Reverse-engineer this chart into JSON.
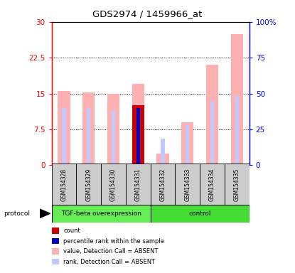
{
  "title": "GDS2974 / 1459966_at",
  "samples": [
    "GSM154328",
    "GSM154329",
    "GSM154330",
    "GSM154331",
    "GSM154332",
    "GSM154333",
    "GSM154334",
    "GSM154335"
  ],
  "ylim_left": [
    0,
    30
  ],
  "ylim_right": [
    0,
    100
  ],
  "yticks_left": [
    0,
    7.5,
    15,
    22.5,
    30
  ],
  "ytick_labels_left": [
    "0",
    "7.5",
    "15",
    "22.5",
    "30"
  ],
  "yticks_right": [
    0,
    25,
    50,
    75,
    100
  ],
  "ytick_labels_right": [
    "0",
    "25",
    "50",
    "75",
    "100%"
  ],
  "value_bars": [
    15.5,
    15.3,
    15.0,
    17.0,
    2.5,
    9.0,
    21.0,
    27.5
  ],
  "rank_bars": [
    12.0,
    12.0,
    11.5,
    12.5,
    5.5,
    8.5,
    13.5,
    14.5
  ],
  "count_bars": [
    null,
    null,
    null,
    12.5,
    null,
    null,
    null,
    null
  ],
  "percentile_bars": [
    null,
    null,
    null,
    12.0,
    null,
    null,
    null,
    null
  ],
  "count_color": "#cc0000",
  "percentile_color": "#0000cc",
  "value_absent_color": "#ffb0b0",
  "rank_absent_color": "#c0c8ff",
  "dotted_lines": [
    7.5,
    15.0,
    22.5
  ],
  "group_label_1": "TGF-beta overexpression",
  "group_label_2": "control",
  "group_color_1": "#66ee55",
  "group_color_2": "#44dd33",
  "legend_items": [
    {
      "label": "count",
      "color": "#cc0000"
    },
    {
      "label": "percentile rank within the sample",
      "color": "#0000cc"
    },
    {
      "label": "value, Detection Call = ABSENT",
      "color": "#ffb0b0"
    },
    {
      "label": "rank, Detection Call = ABSENT",
      "color": "#c0c8ff"
    }
  ],
  "left_axis_color": "red",
  "right_axis_color": "blue",
  "bar_width": 0.5,
  "rank_bar_width": 0.15
}
